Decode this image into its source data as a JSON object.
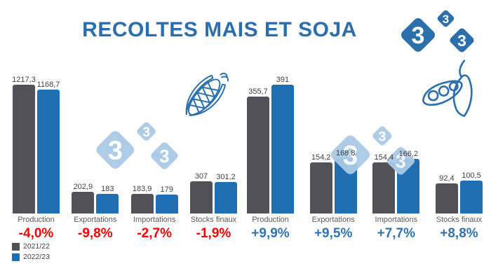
{
  "title": "RECOLTES MAIS ET SOJA",
  "colors": {
    "title_blue": "#2B6EAE",
    "negative_red": "#FF0000",
    "positive_blue": "#2E74B5",
    "bar_gray": "#515157",
    "bar_blue": "#1F6FB2",
    "logo_blue": "#2B6FAD",
    "watermark_blue": "#ABCAE6"
  },
  "logo": {
    "name": "333-logo",
    "digits": [
      "3",
      "3",
      "3"
    ]
  },
  "legend": {
    "items": [
      {
        "label": "2021/22",
        "color": "#515157"
      },
      {
        "label": "2022/23",
        "color": "#1F6FB2"
      }
    ]
  },
  "chart_data": [
    {
      "type": "bar",
      "name": "mais",
      "icon": "corn-icon",
      "categories": [
        "Production",
        "Exportations",
        "Importations",
        "Stocks finaux"
      ],
      "series": [
        {
          "name": "2021/22",
          "color": "#515157",
          "values": [
            1217.3,
            202.9,
            183.9,
            307
          ],
          "labels": [
            "1217,3",
            "202,9",
            "183,9",
            "307"
          ]
        },
        {
          "name": "2022/23",
          "color": "#1F6FB2",
          "values": [
            1168.7,
            183,
            179,
            301.2
          ],
          "labels": [
            "1168,7",
            "183",
            "179",
            "301,2"
          ]
        }
      ],
      "changes": [
        "-4,0%",
        "-9,8%",
        "-2,7%",
        "-1,9%"
      ],
      "change_color": "#FF0000",
      "ylim": [
        0,
        1250
      ],
      "legend_position": "bottom-left",
      "grid": false
    },
    {
      "type": "bar",
      "name": "soja",
      "icon": "soybean-icon",
      "categories": [
        "Production",
        "Exportations",
        "Importations",
        "Stocks finaux"
      ],
      "series": [
        {
          "name": "2021/22",
          "color": "#515157",
          "values": [
            355.7,
            154.2,
            154.4,
            92.4
          ],
          "labels": [
            "355,7",
            "154,2",
            "154,4",
            "92,4"
          ]
        },
        {
          "name": "2022/23",
          "color": "#1F6FB2",
          "values": [
            391,
            168.8,
            166.2,
            100.5
          ],
          "labels": [
            "391",
            "168,8",
            "166,2",
            "100,5"
          ]
        }
      ],
      "changes": [
        "+9,9%",
        "+9,5%",
        "+7,7%",
        "+8,8%"
      ],
      "change_color": "#2E74B5",
      "ylim": [
        0,
        400
      ],
      "legend_position": "bottom-left",
      "grid": false
    }
  ]
}
